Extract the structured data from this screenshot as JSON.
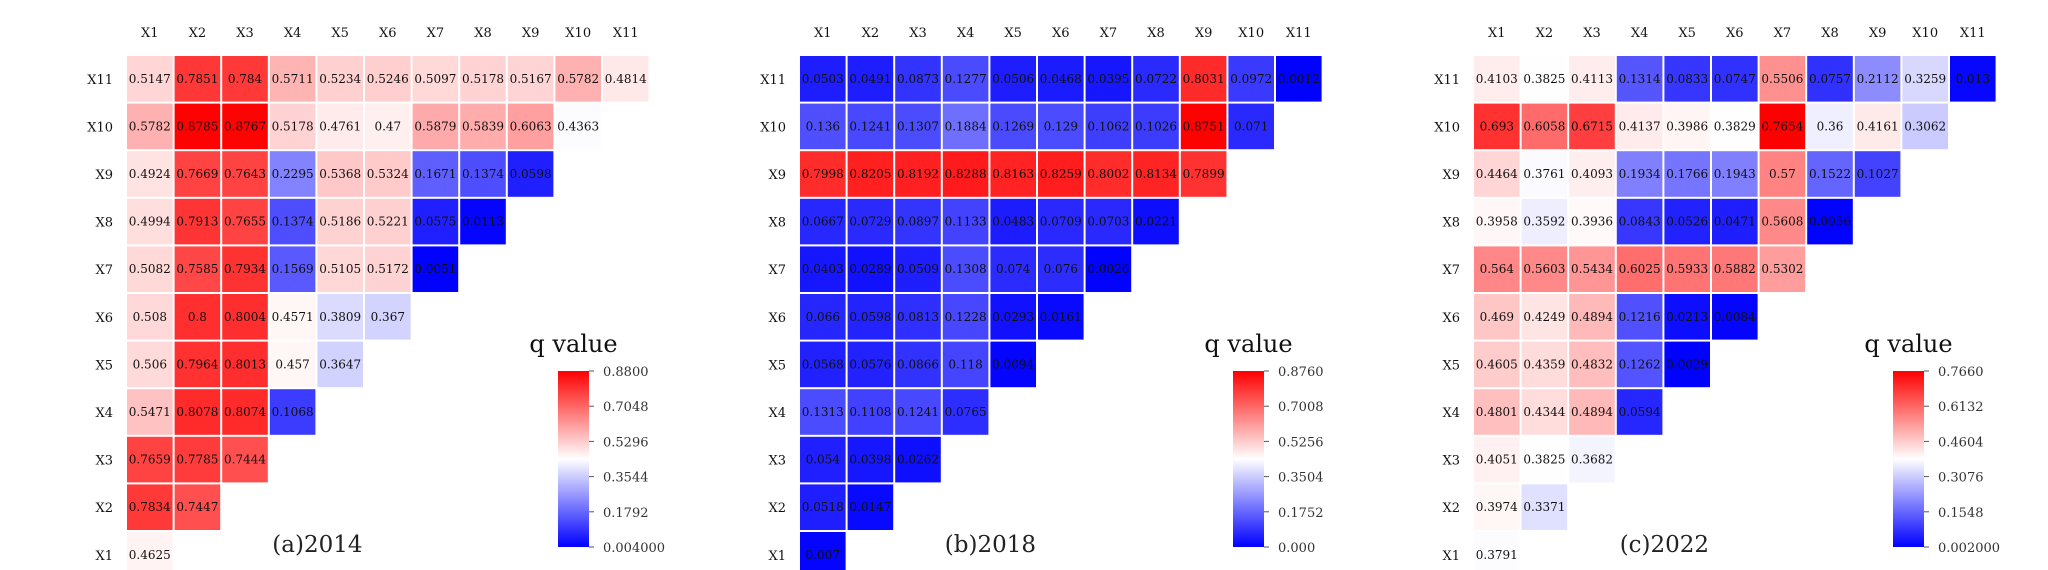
{
  "chart_data": [
    {
      "type": "heatmap",
      "caption": "(a)2014",
      "legend_title": "q value",
      "columns": [
        "X1",
        "X2",
        "X3",
        "X4",
        "X5",
        "X6",
        "X7",
        "X8",
        "X9",
        "X10",
        "X11"
      ],
      "rows": [
        "X11",
        "X10",
        "X9",
        "X8",
        "X7",
        "X6",
        "X5",
        "X4",
        "X3",
        "X2",
        "X1"
      ],
      "cells": [
        [
          "0.5147",
          "0.7851",
          "0.784",
          "0.5711",
          "0.5234",
          "0.5246",
          "0.5097",
          "0.5178",
          "0.5167",
          "0.5782",
          "0.4814"
        ],
        [
          "0.5782",
          "0.8785",
          "0.8767",
          "0.5178",
          "0.4761",
          "0.47",
          "0.5879",
          "0.5839",
          "0.6063",
          "0.4363"
        ],
        [
          "0.4924",
          "0.7669",
          "0.7643",
          "0.2295",
          "0.5368",
          "0.5324",
          "0.1671",
          "0.1374",
          "0.0598"
        ],
        [
          "0.4994",
          "0.7913",
          "0.7655",
          "0.1374",
          "0.5186",
          "0.5221",
          "0.0575",
          "0.0113"
        ],
        [
          "0.5082",
          "0.7585",
          "0.7934",
          "0.1569",
          "0.5105",
          "0.5172",
          "0.0051"
        ],
        [
          "0.508",
          "0.8",
          "0.8004",
          "0.4571",
          "0.3809",
          "0.367"
        ],
        [
          "0.506",
          "0.7964",
          "0.8013",
          "0.457",
          "0.3647"
        ],
        [
          "0.5471",
          "0.8078",
          "0.8074",
          "0.1068"
        ],
        [
          "0.7659",
          "0.7785",
          "0.7444"
        ],
        [
          "0.7834",
          "0.7447"
        ],
        [
          "0.4625"
        ]
      ],
      "colorbar": {
        "min": 0.004,
        "max": 0.88,
        "ticks": [
          "0.8800",
          "0.7048",
          "0.5296",
          "0.3544",
          "0.1792",
          "0.004000"
        ],
        "low_color": "#0000ff",
        "mid_color": "#ffffff",
        "high_color": "#ff0000"
      }
    },
    {
      "type": "heatmap",
      "caption": "(b)2018",
      "legend_title": "q value",
      "columns": [
        "X1",
        "X2",
        "X3",
        "X4",
        "X5",
        "X6",
        "X7",
        "X8",
        "X9",
        "X10",
        "X11"
      ],
      "rows": [
        "X11",
        "X10",
        "X9",
        "X8",
        "X7",
        "X6",
        "X5",
        "X4",
        "X3",
        "X2",
        "X1"
      ],
      "cells": [
        [
          "0.0503",
          "0.0491",
          "0.0873",
          "0.1277",
          "0.0506",
          "0.0468",
          "0.0395",
          "0.0722",
          "0.8031",
          "0.0972",
          "0.0012"
        ],
        [
          "0.136",
          "0.1241",
          "0.1307",
          "0.1884",
          "0.1269",
          "0.129",
          "0.1062",
          "0.1026",
          "0.8751",
          "0.071"
        ],
        [
          "0.7998",
          "0.8205",
          "0.8192",
          "0.8288",
          "0.8163",
          "0.8259",
          "0.8002",
          "0.8134",
          "0.7899"
        ],
        [
          "0.0667",
          "0.0729",
          "0.0897",
          "0.1133",
          "0.0483",
          "0.0709",
          "0.0703",
          "0.0221"
        ],
        [
          "0.0403",
          "0.0289",
          "0.0509",
          "0.1308",
          "0.074",
          "0.076",
          "0.0026"
        ],
        [
          "0.066",
          "0.0598",
          "0.0813",
          "0.1228",
          "0.0293",
          "0.0161"
        ],
        [
          "0.0568",
          "0.0576",
          "0.0866",
          "0.118",
          "0.0094"
        ],
        [
          "0.1313",
          "0.1108",
          "0.1241",
          "0.0765"
        ],
        [
          "0.054",
          "0.0398",
          "0.0262"
        ],
        [
          "0.0518",
          "0.0147"
        ],
        [
          "0.007"
        ]
      ],
      "colorbar": {
        "min": 0.0,
        "max": 0.876,
        "ticks": [
          "0.8760",
          "0.7008",
          "0.5256",
          "0.3504",
          "0.1752",
          "0.000"
        ],
        "low_color": "#0000ff",
        "mid_color": "#ffffff",
        "high_color": "#ff0000"
      }
    },
    {
      "type": "heatmap",
      "caption": "(c)2022",
      "legend_title": "q value",
      "columns": [
        "X1",
        "X2",
        "X3",
        "X4",
        "X5",
        "X6",
        "X7",
        "X8",
        "X9",
        "X10",
        "X11"
      ],
      "rows": [
        "X11",
        "X10",
        "X9",
        "X8",
        "X7",
        "X6",
        "X5",
        "X4",
        "X3",
        "X2",
        "X1"
      ],
      "cells": [
        [
          "0.4103",
          "0.3825",
          "0.4113",
          "0.1314",
          "0.0833",
          "0.0747",
          "0.5506",
          "0.0757",
          "0.2112",
          "0.3259",
          "0.013"
        ],
        [
          "0.693",
          "0.6058",
          "0.6715",
          "0.4137",
          "0.3986",
          "0.3829",
          "0.7654",
          "0.36",
          "0.4161",
          "0.3062"
        ],
        [
          "0.4464",
          "0.3761",
          "0.4093",
          "0.1934",
          "0.1766",
          "0.1943",
          "0.57",
          "0.1522",
          "0.1027"
        ],
        [
          "0.3958",
          "0.3592",
          "0.3936",
          "0.0843",
          "0.0526",
          "0.0471",
          "0.5608",
          "0.0056"
        ],
        [
          "0.564",
          "0.5603",
          "0.5434",
          "0.6025",
          "0.5933",
          "0.5882",
          "0.5302"
        ],
        [
          "0.469",
          "0.4249",
          "0.4894",
          "0.1216",
          "0.0213",
          "0.0084"
        ],
        [
          "0.4605",
          "0.4359",
          "0.4832",
          "0.1262",
          "0.0029"
        ],
        [
          "0.4801",
          "0.4344",
          "0.4894",
          "0.0594"
        ],
        [
          "0.4051",
          "0.3825",
          "0.3682"
        ],
        [
          "0.3974",
          "0.3371"
        ],
        [
          "0.3791"
        ]
      ],
      "colorbar": {
        "min": 0.002,
        "max": 0.766,
        "ticks": [
          "0.7660",
          "0.6132",
          "0.4604",
          "0.3076",
          "0.1548",
          "0.002000"
        ],
        "low_color": "#0000ff",
        "mid_color": "#ffffff",
        "high_color": "#ff0000"
      }
    }
  ]
}
